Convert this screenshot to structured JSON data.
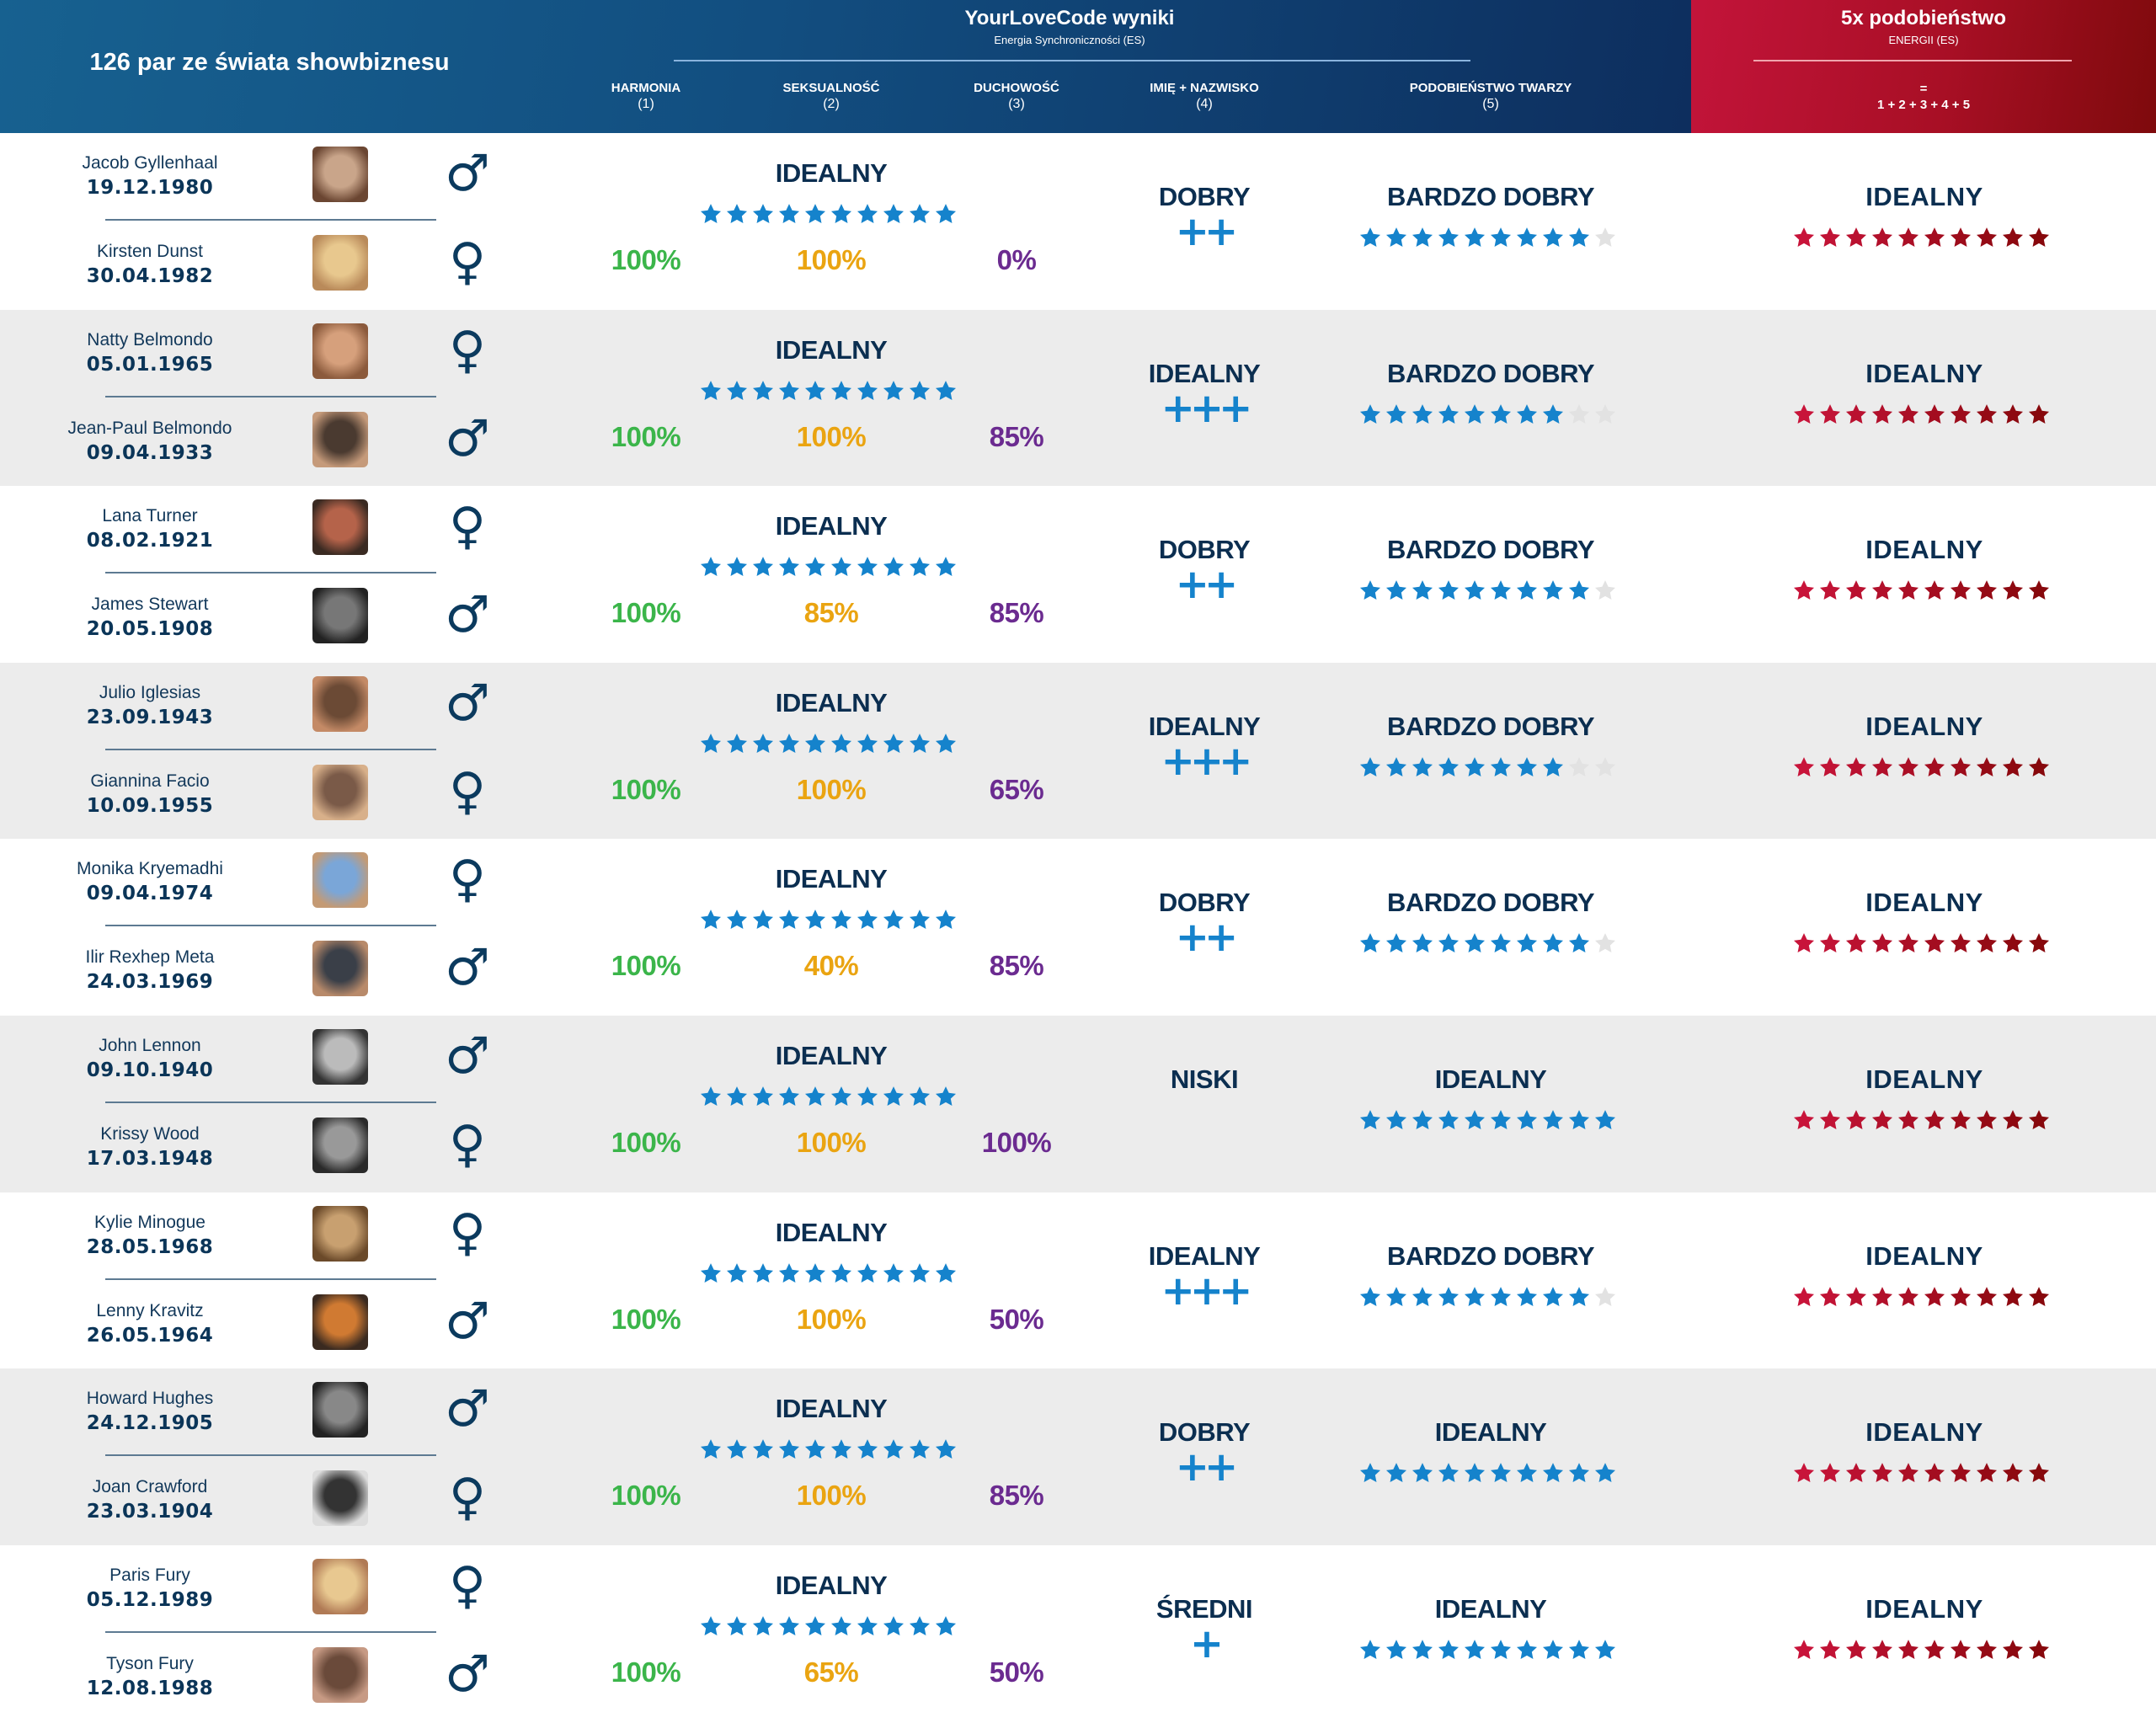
{
  "header": {
    "title": "126 par ze świata showbiznesu",
    "group_title": "YourLoveCode wyniki",
    "group_subtitle": "Energia Synchroniczności (ES)",
    "columns": [
      {
        "label": "HARMONIA",
        "num": "(1)"
      },
      {
        "label": "SEKSUALNOŚĆ",
        "num": "(2)"
      },
      {
        "label": "DUCHOWOŚĆ",
        "num": "(3)"
      },
      {
        "label": "IMIĘ + NAZWISKO",
        "num": "(4)"
      },
      {
        "label": "PODOBIEŃSTWO TWARZY",
        "num": "(5)"
      }
    ],
    "red_title": "5x podobieństwo",
    "red_subtitle": "ENERGII (ES)",
    "red_eq": "=",
    "red_formula": "1 + 2 + 3 + 4 + 5"
  },
  "colors": {
    "header_blue": "#124e80",
    "header_red": "#b3102c",
    "harmonia": "#3bb54a",
    "seksualnosc": "#eaa411",
    "duchowosc": "#6b2b90",
    "star_blue": "#1583cc",
    "star_empty": "#e2e2e2",
    "star_red": "#b0102a",
    "text_navy": "#0b2e50"
  },
  "couples": [
    {
      "p1": {
        "name": "Jacob Gyllenhaal",
        "date": "19.12.1980",
        "gender": "male",
        "gender_glyph": "♂"
      },
      "p2": {
        "name": "Kirsten Dunst",
        "date": "30.04.1982",
        "gender": "female",
        "gender_glyph": "♀"
      },
      "es_label": "IDEALNY",
      "es_stars": 10,
      "harmonia": "100%",
      "seksualnosc": "100%",
      "duchowosc": "0%",
      "name_label": "DOBRY",
      "name_plus": "++",
      "face_label": "BARDZO DOBRY",
      "face_stars": 9,
      "final_label": "IDEALNY",
      "final_stars": 10
    },
    {
      "p1": {
        "name": "Natty Belmondo",
        "date": "05.01.1965",
        "gender": "female",
        "gender_glyph": "♀"
      },
      "p2": {
        "name": "Jean-Paul Belmondo",
        "date": "09.04.1933",
        "gender": "male",
        "gender_glyph": "♂"
      },
      "es_label": "IDEALNY",
      "es_stars": 10,
      "harmonia": "100%",
      "seksualnosc": "100%",
      "duchowosc": "85%",
      "name_label": "IDEALNY",
      "name_plus": "+++",
      "face_label": "BARDZO DOBRY",
      "face_stars": 8,
      "final_label": "IDEALNY",
      "final_stars": 10
    },
    {
      "p1": {
        "name": "Lana Turner",
        "date": "08.02.1921",
        "gender": "female",
        "gender_glyph": "♀"
      },
      "p2": {
        "name": "James Stewart",
        "date": "20.05.1908",
        "gender": "male",
        "gender_glyph": "♂"
      },
      "es_label": "IDEALNY",
      "es_stars": 10,
      "harmonia": "100%",
      "seksualnosc": "85%",
      "duchowosc": "85%",
      "name_label": "DOBRY",
      "name_plus": "++",
      "face_label": "BARDZO DOBRY",
      "face_stars": 9,
      "final_label": "IDEALNY",
      "final_stars": 10
    },
    {
      "p1": {
        "name": "Julio Iglesias",
        "date": "23.09.1943",
        "gender": "male",
        "gender_glyph": "♂"
      },
      "p2": {
        "name": "Giannina Facio",
        "date": "10.09.1955",
        "gender": "female",
        "gender_glyph": "♀"
      },
      "es_label": "IDEALNY",
      "es_stars": 10,
      "harmonia": "100%",
      "seksualnosc": "100%",
      "duchowosc": "65%",
      "name_label": "IDEALNY",
      "name_plus": "+++",
      "face_label": "BARDZO DOBRY",
      "face_stars": 8,
      "final_label": "IDEALNY",
      "final_stars": 10
    },
    {
      "p1": {
        "name": "Monika Kryemadhi",
        "date": "09.04.1974",
        "gender": "female",
        "gender_glyph": "♀"
      },
      "p2": {
        "name": "Ilir Rexhep Meta",
        "date": "24.03.1969",
        "gender": "male",
        "gender_glyph": "♂"
      },
      "es_label": "IDEALNY",
      "es_stars": 10,
      "harmonia": "100%",
      "seksualnosc": "40%",
      "duchowosc": "85%",
      "name_label": "DOBRY",
      "name_plus": "++",
      "face_label": "BARDZO DOBRY",
      "face_stars": 9,
      "final_label": "IDEALNY",
      "final_stars": 10
    },
    {
      "p1": {
        "name": "John Lennon",
        "date": "09.10.1940",
        "gender": "male",
        "gender_glyph": "♂"
      },
      "p2": {
        "name": "Krissy Wood",
        "date": "17.03.1948",
        "gender": "female",
        "gender_glyph": "♀"
      },
      "es_label": "IDEALNY",
      "es_stars": 10,
      "harmonia": "100%",
      "seksualnosc": "100%",
      "duchowosc": "100%",
      "name_label": "NISKI",
      "name_plus": "",
      "face_label": "IDEALNY",
      "face_stars": 10,
      "final_label": "IDEALNY",
      "final_stars": 10
    },
    {
      "p1": {
        "name": "Kylie Minogue",
        "date": "28.05.1968",
        "gender": "female",
        "gender_glyph": "♀"
      },
      "p2": {
        "name": "Lenny Kravitz",
        "date": "26.05.1964",
        "gender": "male",
        "gender_glyph": "♂"
      },
      "es_label": "IDEALNY",
      "es_stars": 10,
      "harmonia": "100%",
      "seksualnosc": "100%",
      "duchowosc": "50%",
      "name_label": "IDEALNY",
      "name_plus": "+++",
      "face_label": "BARDZO DOBRY",
      "face_stars": 9,
      "final_label": "IDEALNY",
      "final_stars": 10
    },
    {
      "p1": {
        "name": "Howard Hughes",
        "date": "24.12.1905",
        "gender": "male",
        "gender_glyph": "♂"
      },
      "p2": {
        "name": "Joan Crawford",
        "date": "23.03.1904",
        "gender": "female",
        "gender_glyph": "♀"
      },
      "es_label": "IDEALNY",
      "es_stars": 10,
      "harmonia": "100%",
      "seksualnosc": "100%",
      "duchowosc": "85%",
      "name_label": "DOBRY",
      "name_plus": "++",
      "face_label": "IDEALNY",
      "face_stars": 10,
      "final_label": "IDEALNY",
      "final_stars": 10
    },
    {
      "p1": {
        "name": "Paris Fury",
        "date": "05.12.1989",
        "gender": "female",
        "gender_glyph": "♀"
      },
      "p2": {
        "name": "Tyson Fury",
        "date": "12.08.1988",
        "gender": "male",
        "gender_glyph": "♂"
      },
      "es_label": "IDEALNY",
      "es_stars": 10,
      "harmonia": "100%",
      "seksualnosc": "65%",
      "duchowosc": "50%",
      "name_label": "ŚREDNI",
      "name_plus": "+",
      "face_label": "IDEALNY",
      "face_stars": 10,
      "final_label": "IDEALNY",
      "final_stars": 10
    }
  ]
}
